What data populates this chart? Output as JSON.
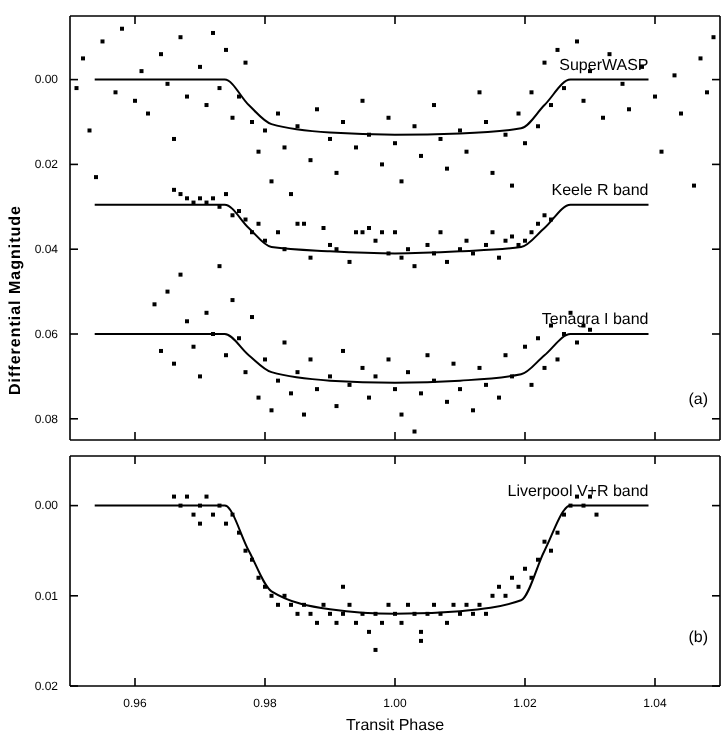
{
  "chart_data": [
    {
      "type": "scatter",
      "ylabel": "Differential Magnitude",
      "annotations": [
        "(a)"
      ],
      "xlim": [
        0.95,
        1.05
      ],
      "ylim": [
        0.085,
        -0.015
      ],
      "xticks": [
        {
          "value": 0.96,
          "label": null
        },
        {
          "value": 0.98,
          "label": null
        },
        {
          "value": 1.0,
          "label": null
        },
        {
          "value": 1.02,
          "label": null
        },
        {
          "value": 1.04,
          "label": null
        }
      ],
      "yticks": [
        {
          "value": 0,
          "label": "0.00"
        },
        {
          "value": 0.02,
          "label": "0.02"
        },
        {
          "value": 0.04,
          "label": "0.04"
        },
        {
          "value": 0.06,
          "label": "0.06"
        },
        {
          "value": 0.08,
          "label": "0.08"
        }
      ],
      "tick_labels": "y",
      "grid": false,
      "marker": "square",
      "series": [
        {
          "color": "#000000",
          "x": [
            0.951,
            0.952,
            0.953,
            0.954,
            0.955,
            0.957,
            0.958,
            0.96,
            0.961,
            0.962,
            0.964,
            0.965,
            0.966,
            0.967,
            0.968,
            0.97,
            0.971,
            0.972,
            0.973,
            0.974,
            0.975,
            0.976,
            0.977,
            0.978,
            0.979,
            0.98,
            0.981,
            0.982,
            0.983,
            0.984,
            0.985,
            0.987,
            0.988,
            0.99,
            0.991,
            0.992,
            0.994,
            0.995,
            0.996,
            0.998,
            0.999,
            1.0,
            1.001,
            1.003,
            1.004,
            1.006,
            1.007,
            1.008,
            1.01,
            1.011,
            1.013,
            1.014,
            1.015,
            1.017,
            1.018,
            1.019,
            1.02,
            1.021,
            1.022,
            1.023,
            1.024,
            1.025,
            1.026,
            1.028,
            1.029,
            1.03,
            1.032,
            1.033,
            1.035,
            1.036,
            1.038,
            1.04,
            1.041,
            1.043,
            1.044,
            1.046,
            1.047,
            1.048,
            1.049
          ],
          "values": [
            0.002,
            -0.005,
            0.012,
            0.023,
            -0.009,
            0.003,
            -0.012,
            0.005,
            -0.002,
            0.008,
            -0.006,
            0.001,
            0.014,
            -0.01,
            0.004,
            -0.003,
            0.006,
            -0.011,
            0.002,
            -0.007,
            0.009,
            0.004,
            -0.004,
            0.01,
            0.017,
            0.012,
            0.024,
            0.008,
            0.016,
            0.027,
            0.011,
            0.019,
            0.007,
            0.014,
            0.022,
            0.01,
            0.016,
            0.005,
            0.013,
            0.02,
            0.009,
            0.015,
            0.024,
            0.011,
            0.018,
            0.006,
            0.014,
            0.021,
            0.012,
            0.017,
            0.003,
            0.01,
            0.022,
            0.013,
            0.025,
            0.008,
            0.015,
            0.003,
            0.011,
            -0.004,
            0.006,
            -0.007,
            0.002,
            -0.009,
            0.005,
            -0.002,
            0.009,
            -0.006,
            0.001,
            0.007,
            -0.003,
            0.004,
            0.017,
            -0.001,
            0.008,
            0.025,
            -0.005,
            0.003,
            -0.01
          ]
        },
        {
          "color": "#000000",
          "x": [
            0.966,
            0.967,
            0.968,
            0.969,
            0.97,
            0.971,
            0.972,
            0.973,
            0.974,
            0.975,
            0.976,
            0.977,
            0.978,
            0.979,
            0.98,
            0.982,
            0.983,
            0.985,
            0.986,
            0.987,
            0.989,
            0.99,
            0.991,
            0.993,
            0.994,
            0.995,
            0.996,
            0.997,
            0.998,
            0.999,
            1.0,
            1.001,
            1.002,
            1.003,
            1.005,
            1.006,
            1.007,
            1.008,
            1.01,
            1.011,
            1.012,
            1.014,
            1.015,
            1.016,
            1.017,
            1.018,
            1.019,
            1.02,
            1.021,
            1.022,
            1.023,
            1.024
          ],
          "values": [
            0.026,
            0.027,
            0.028,
            0.029,
            0.028,
            0.029,
            0.028,
            0.03,
            0.027,
            0.032,
            0.031,
            0.033,
            0.036,
            0.034,
            0.038,
            0.036,
            0.04,
            0.034,
            0.034,
            0.042,
            0.035,
            0.039,
            0.04,
            0.043,
            0.036,
            0.036,
            0.035,
            0.038,
            0.036,
            0.041,
            0.036,
            0.042,
            0.04,
            0.044,
            0.039,
            0.041,
            0.036,
            0.043,
            0.04,
            0.038,
            0.041,
            0.039,
            0.036,
            0.042,
            0.038,
            0.037,
            0.039,
            0.038,
            0.036,
            0.034,
            0.032,
            0.033
          ]
        },
        {
          "color": "#000000",
          "x": [
            0.963,
            0.964,
            0.965,
            0.966,
            0.967,
            0.968,
            0.969,
            0.97,
            0.971,
            0.972,
            0.973,
            0.974,
            0.975,
            0.976,
            0.977,
            0.978,
            0.979,
            0.98,
            0.981,
            0.982,
            0.983,
            0.984,
            0.985,
            0.986,
            0.987,
            0.988,
            0.99,
            0.991,
            0.992,
            0.993,
            0.995,
            0.996,
            0.997,
            0.999,
            1.0,
            1.001,
            1.002,
            1.003,
            1.004,
            1.005,
            1.006,
            1.008,
            1.009,
            1.01,
            1.012,
            1.013,
            1.014,
            1.016,
            1.017,
            1.018,
            1.02,
            1.021,
            1.022,
            1.023,
            1.024,
            1.025,
            1.026,
            1.027,
            1.028,
            1.029,
            1.03
          ],
          "values": [
            0.053,
            0.064,
            0.05,
            0.067,
            0.046,
            0.057,
            0.063,
            0.07,
            0.055,
            0.06,
            0.044,
            0.065,
            0.052,
            0.061,
            0.069,
            0.056,
            0.075,
            0.066,
            0.078,
            0.071,
            0.062,
            0.074,
            0.069,
            0.079,
            0.066,
            0.073,
            0.07,
            0.077,
            0.064,
            0.072,
            0.068,
            0.075,
            0.07,
            0.066,
            0.073,
            0.079,
            0.069,
            0.083,
            0.074,
            0.065,
            0.071,
            0.076,
            0.067,
            0.073,
            0.078,
            0.068,
            0.072,
            0.075,
            0.065,
            0.07,
            0.063,
            0.072,
            0.061,
            0.068,
            0.058,
            0.066,
            0.06,
            0.055,
            0.062,
            0.058,
            0.059
          ]
        },
        {
          "type": "line",
          "name": "SuperWASP",
          "marker": "none",
          "color": "#000000",
          "x": [
            0.9538,
            0.9738,
            0.9775,
            0.981,
            0.99,
            1.0,
            1.01,
            1.0194,
            1.023,
            1.027,
            1.039
          ],
          "values": [
            0,
            0,
            0.006,
            0.0105,
            0.0125,
            0.013,
            0.0127,
            0.0115,
            0.006,
            0,
            0
          ]
        },
        {
          "type": "line",
          "name": "Keele R band",
          "marker": "none",
          "color": "#000000",
          "x": [
            0.9538,
            0.9738,
            0.9775,
            0.981,
            0.99,
            1.0,
            1.01,
            1.0194,
            1.023,
            1.027,
            1.039
          ],
          "values": [
            0.0295,
            0.0295,
            0.035,
            0.0395,
            0.0405,
            0.041,
            0.0405,
            0.0395,
            0.035,
            0.0295,
            0.0295
          ]
        },
        {
          "type": "line",
          "name": "Tenagra I band",
          "marker": "none",
          "color": "#000000",
          "x": [
            0.9538,
            0.9738,
            0.9775,
            0.981,
            0.99,
            1.0,
            1.01,
            1.0194,
            1.023,
            1.027,
            1.039
          ],
          "values": [
            0.06,
            0.06,
            0.065,
            0.069,
            0.071,
            0.0715,
            0.071,
            0.0695,
            0.065,
            0.06,
            0.06
          ]
        }
      ]
    },
    {
      "type": "scatter",
      "xlabel": "Transit Phase",
      "annotations": [
        "(b)"
      ],
      "xlim": [
        0.95,
        1.05
      ],
      "ylim": [
        0.02,
        -0.0055
      ],
      "xticks": [
        {
          "value": 0.96,
          "label": "0.96"
        },
        {
          "value": 0.98,
          "label": "0.98"
        },
        {
          "value": 1.0,
          "label": "1.00"
        },
        {
          "value": 1.02,
          "label": "1.02"
        },
        {
          "value": 1.04,
          "label": "1.04"
        }
      ],
      "yticks": [
        {
          "value": 0,
          "label": "0.00"
        },
        {
          "value": 0.01,
          "label": "0.01"
        },
        {
          "value": 0.02,
          "label": "0.02"
        }
      ],
      "grid": false,
      "marker": "square",
      "series": [
        {
          "color": "#000000",
          "x": [
            0.966,
            0.967,
            0.968,
            0.969,
            0.97,
            0.971,
            0.972,
            0.973,
            0.974,
            0.975,
            0.976,
            0.977,
            0.978,
            0.979,
            0.98,
            0.981,
            0.982,
            0.983,
            0.984,
            0.985,
            0.986,
            0.987,
            0.988,
            0.989,
            0.99,
            0.991,
            0.992,
            0.993,
            0.994,
            0.995,
            0.996,
            0.997,
            0.998,
            0.999,
            1.0,
            1.001,
            1.002,
            1.003,
            1.004,
            1.005,
            1.006,
            1.007,
            1.008,
            1.009,
            1.01,
            1.011,
            1.012,
            1.013,
            1.014,
            1.015,
            1.016,
            1.017,
            1.018,
            1.019,
            1.02,
            1.021,
            1.022,
            1.023,
            1.024,
            1.025,
            1.026,
            1.027,
            1.028,
            1.029,
            1.03,
            1.031,
            0.997,
            1.004,
            0.97,
            0.992
          ],
          "values": [
            -0.001,
            0,
            -0.001,
            0.001,
            0,
            -0.001,
            0.001,
            0,
            0.002,
            0.001,
            0.003,
            0.005,
            0.006,
            0.008,
            0.009,
            0.01,
            0.011,
            0.01,
            0.011,
            0.012,
            0.011,
            0.012,
            0.013,
            0.011,
            0.012,
            0.013,
            0.012,
            0.011,
            0.013,
            0.012,
            0.014,
            0.012,
            0.013,
            0.011,
            0.012,
            0.013,
            0.011,
            0.012,
            0.014,
            0.012,
            0.011,
            0.012,
            0.013,
            0.011,
            0.012,
            0.011,
            0.012,
            0.011,
            0.012,
            0.01,
            0.009,
            0.01,
            0.008,
            0.009,
            0.007,
            0.008,
            0.006,
            0.004,
            0.005,
            0.003,
            0.001,
            0,
            -0.001,
            0,
            -0.001,
            0.001,
            0.016,
            0.015,
            0.002,
            0.009
          ]
        },
        {
          "type": "line",
          "name": "Liverpool V+R band",
          "marker": "none",
          "color": "#000000",
          "x": [
            0.9538,
            0.9738,
            0.9775,
            0.981,
            0.99,
            1.0,
            1.01,
            1.0194,
            1.023,
            1.027,
            1.039
          ],
          "values": [
            0,
            0,
            0.005,
            0.0095,
            0.0115,
            0.012,
            0.0117,
            0.0105,
            0.005,
            0,
            0
          ]
        }
      ]
    }
  ]
}
